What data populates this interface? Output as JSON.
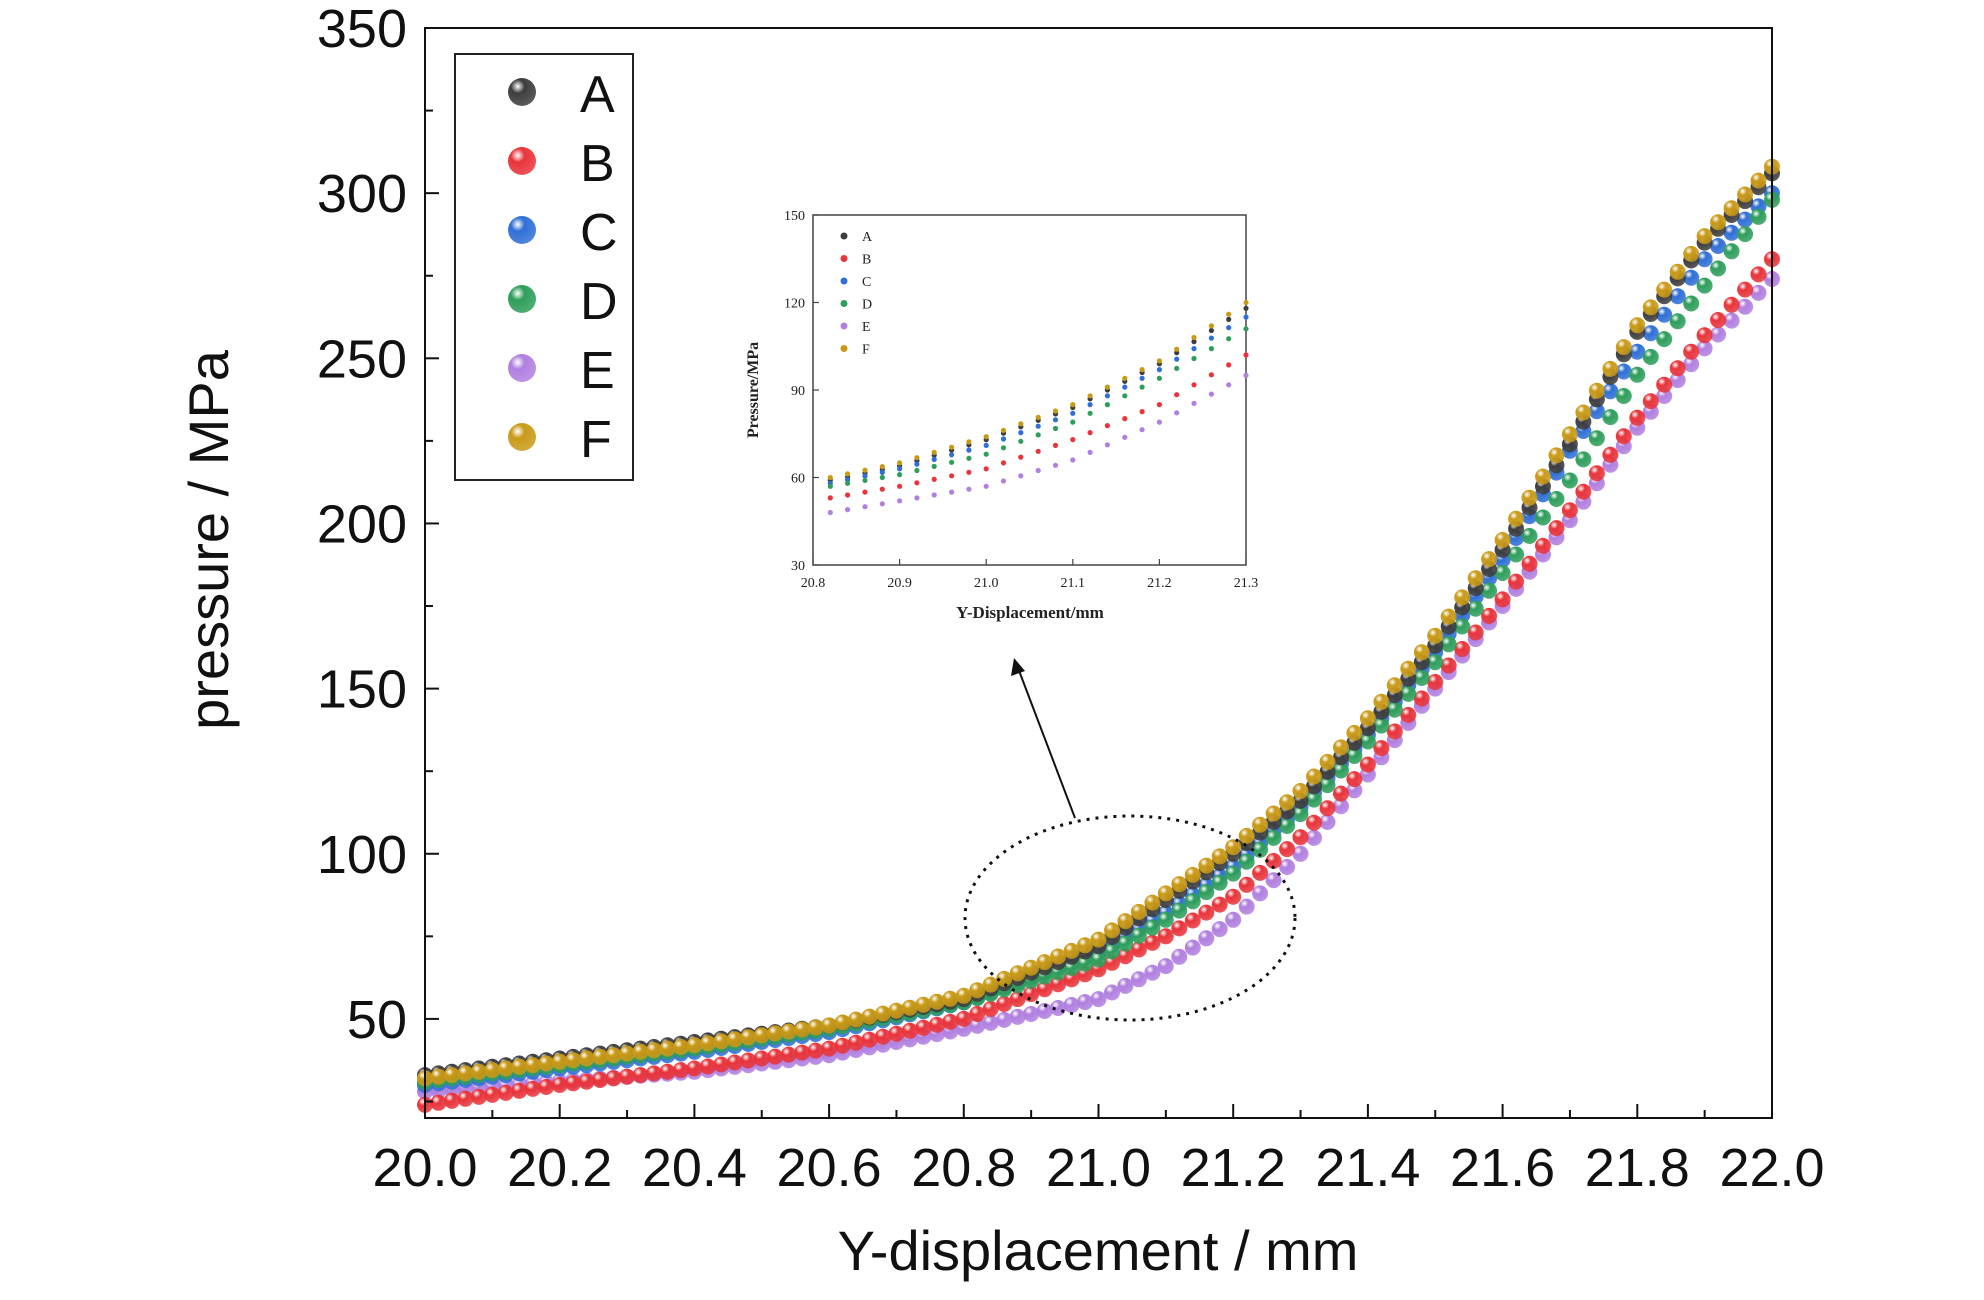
{
  "chart_data": {
    "type": "scatter",
    "xlabel": "Y-displacement / mm",
    "ylabel": "pressure / MPa",
    "xlim": [
      20.0,
      22.0
    ],
    "ylim": [
      20,
      350
    ],
    "x_ticks": [
      "20.0",
      "20.2",
      "20.4",
      "20.6",
      "20.8",
      "21.0",
      "21.2",
      "21.4",
      "21.6",
      "21.8",
      "22.0"
    ],
    "y_ticks": [
      "50",
      "100",
      "150",
      "200",
      "250",
      "300",
      "350"
    ],
    "legend_position": "top-left",
    "series": [
      {
        "name": "A",
        "color": "#3d3d3d",
        "x": [
          20.0,
          20.2,
          20.4,
          20.6,
          20.8,
          21.0,
          21.1,
          21.2,
          21.3,
          21.4,
          21.5,
          21.6,
          21.7,
          21.8,
          21.9,
          22.0
        ],
        "y": [
          33,
          38,
          43,
          48,
          56,
          72,
          86,
          100,
          116,
          138,
          163,
          192,
          224,
          258,
          285,
          306
        ]
      },
      {
        "name": "B",
        "color": "#e8343a",
        "x": [
          20.0,
          20.2,
          20.4,
          20.6,
          20.8,
          21.0,
          21.1,
          21.2,
          21.3,
          21.4,
          21.5,
          21.6,
          21.7,
          21.8,
          21.9,
          22.0
        ],
        "y": [
          24,
          30,
          35,
          41,
          50,
          65,
          75,
          87,
          105,
          127,
          152,
          177,
          204,
          232,
          257,
          280
        ]
      },
      {
        "name": "C",
        "color": "#2f6fd6",
        "x": [
          20.0,
          20.2,
          20.4,
          20.6,
          20.8,
          21.0,
          21.1,
          21.2,
          21.3,
          21.4,
          21.5,
          21.6,
          21.7,
          21.8,
          21.9,
          22.0
        ],
        "y": [
          30,
          35,
          40,
          46,
          55,
          70,
          82,
          96,
          114,
          136,
          161,
          189,
          222,
          252,
          280,
          300
        ]
      },
      {
        "name": "D",
        "color": "#2e9e5b",
        "x": [
          20.0,
          20.2,
          20.4,
          20.6,
          20.8,
          21.0,
          21.1,
          21.2,
          21.3,
          21.4,
          21.5,
          21.6,
          21.7,
          21.8,
          21.9,
          22.0
        ],
        "y": [
          31,
          36,
          41,
          47,
          55,
          68,
          80,
          94,
          112,
          134,
          158,
          185,
          213,
          245,
          272,
          298
        ]
      },
      {
        "name": "E",
        "color": "#b07fe0",
        "x": [
          20.0,
          20.2,
          20.4,
          20.6,
          20.8,
          21.0,
          21.1,
          21.2,
          21.3,
          21.4,
          21.5,
          21.6,
          21.7,
          21.8,
          21.9,
          22.0
        ],
        "y": [
          28,
          31,
          34,
          39,
          47,
          56,
          66,
          80,
          100,
          124,
          150,
          175,
          201,
          229,
          253,
          274
        ]
      },
      {
        "name": "F",
        "color": "#c99a18",
        "x": [
          20.0,
          20.2,
          20.4,
          20.6,
          20.8,
          21.0,
          21.1,
          21.2,
          21.3,
          21.4,
          21.5,
          21.6,
          21.7,
          21.8,
          21.9,
          22.0
        ],
        "y": [
          32,
          37,
          42,
          48,
          57,
          74,
          88,
          102,
          119,
          141,
          166,
          195,
          227,
          260,
          287,
          308
        ]
      }
    ],
    "inset": {
      "xlabel": "Y-Displacement/mm",
      "ylabel": "Pressure/MPa",
      "xlim": [
        20.8,
        21.3
      ],
      "ylim": [
        30,
        150
      ],
      "x_ticks": [
        "20.8",
        "20.9",
        "21.0",
        "21.1",
        "21.2",
        "21.3"
      ],
      "y_ticks": [
        "30",
        "60",
        "90",
        "120",
        "150"
      ],
      "legend_position": "top-left",
      "series": [
        {
          "name": "A",
          "x": [
            20.82,
            20.9,
            21.0,
            21.1,
            21.2,
            21.3
          ],
          "y": [
            59,
            64,
            73,
            84,
            99,
            118
          ]
        },
        {
          "name": "B",
          "x": [
            20.82,
            20.9,
            21.0,
            21.1,
            21.2,
            21.3
          ],
          "y": [
            53,
            57,
            63,
            73,
            85,
            102
          ]
        },
        {
          "name": "C",
          "x": [
            20.82,
            20.9,
            21.0,
            21.1,
            21.2,
            21.3
          ],
          "y": [
            58,
            63,
            71,
            82,
            97,
            115
          ]
        },
        {
          "name": "D",
          "x": [
            20.82,
            20.9,
            21.0,
            21.1,
            21.2,
            21.3
          ],
          "y": [
            57,
            61,
            68,
            79,
            94,
            111
          ]
        },
        {
          "name": "E",
          "x": [
            20.82,
            20.9,
            21.0,
            21.1,
            21.2,
            21.3
          ],
          "y": [
            48,
            52,
            57,
            66,
            79,
            95
          ]
        },
        {
          "name": "F",
          "x": [
            20.82,
            20.9,
            21.0,
            21.1,
            21.2,
            21.3
          ],
          "y": [
            60,
            65,
            74,
            85,
            100,
            120
          ]
        }
      ]
    }
  }
}
